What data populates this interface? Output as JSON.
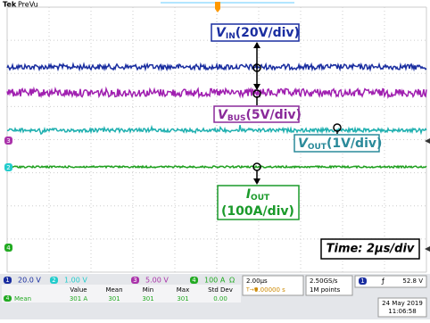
{
  "header": {
    "brand": "Tek",
    "mode": "PreVu"
  },
  "annotations": [
    {
      "symbol": "V",
      "subscript": "IN",
      "scale": "(20V/div)"
    },
    {
      "symbol": "V",
      "subscript": "BUS",
      "scale": "(5V/div)"
    },
    {
      "symbol": "V",
      "subscript": "OUT",
      "scale": "(1V/div)"
    },
    {
      "symbol": "I",
      "subscript": "OUT",
      "scale": "(100A/div)"
    }
  ],
  "time_label": "Time: 2µs/div",
  "channels": [
    {
      "number": "1",
      "scale": "20.0 V"
    },
    {
      "number": "2",
      "scale": "1.00 V"
    },
    {
      "number": "3",
      "scale": "5.00 V"
    },
    {
      "number": "4",
      "scale": "100 A",
      "marker": "Ω"
    }
  ],
  "horizontal": {
    "timebase": "2.00µs",
    "position": "0.00000 s",
    "sample_rate": "2.50GS/s",
    "record_length": "1M points"
  },
  "trigger": {
    "channel": "1",
    "level": "52.8 V"
  },
  "measurement": {
    "channel": "4",
    "name": "Mean",
    "headers": [
      "Value",
      "Mean",
      "Min",
      "Max",
      "Std Dev"
    ],
    "values": [
      "301 A",
      "301",
      "301",
      "301",
      "0.00"
    ]
  },
  "date": "24 May 2019",
  "time": "11:06:58"
}
